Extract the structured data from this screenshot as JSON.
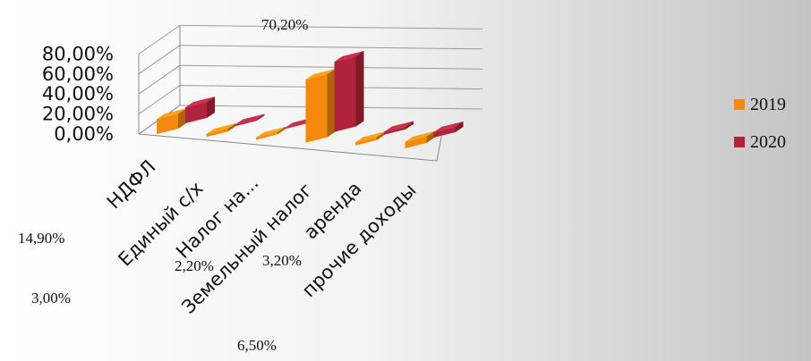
{
  "chart_data": {
    "type": "bar",
    "categories": [
      "НДФЛ",
      "Единый с/х",
      "Налог на...",
      "Земельный налог",
      "аренда",
      "прочие доходы"
    ],
    "series": [
      {
        "name": "2019",
        "values": [
          14.9,
          3.0,
          2.2,
          63.0,
          3.2,
          6.5
        ]
      },
      {
        "name": "2020",
        "values": [
          16.0,
          1.5,
          1.0,
          70.2,
          3.0,
          5.5
        ]
      }
    ],
    "ylim": [
      0,
      80
    ],
    "yticks": [
      "80,00%",
      "60,00%",
      "40,00%",
      "20,00%",
      "0,00%"
    ],
    "grid": true,
    "legend_position": "right",
    "colors": {
      "2019": "#f5890d",
      "2020": "#b0243b"
    },
    "data_labels": [
      {
        "text": "70,20%"
      },
      {
        "text": "14,90%"
      },
      {
        "text": "2,20%"
      },
      {
        "text": "3,20%"
      },
      {
        "text": "3,00%"
      },
      {
        "text": "6,50%"
      }
    ]
  }
}
